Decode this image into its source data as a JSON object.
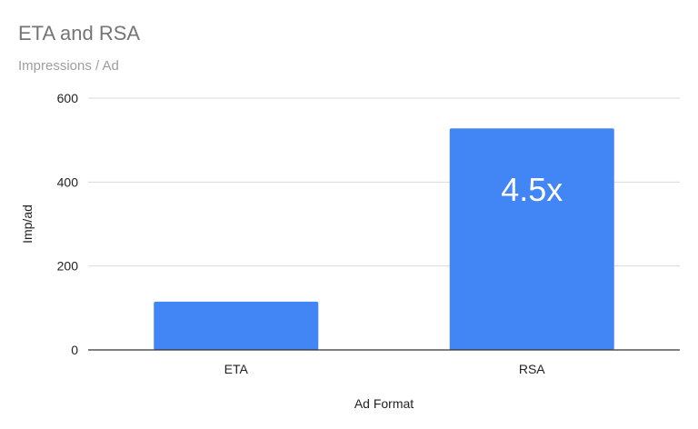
{
  "chart_data": {
    "type": "bar",
    "title": "ETA and RSA",
    "subtitle": "Impressions / Ad",
    "xlabel": "Ad Format",
    "ylabel": "Imp/ad",
    "categories": [
      "ETA",
      "RSA"
    ],
    "values": [
      115,
      528
    ],
    "ylim": [
      0,
      600
    ],
    "yticks": [
      0,
      200,
      400,
      600
    ],
    "grid": true,
    "legend": "none",
    "bar_color": "#4285f4",
    "annotations": [
      {
        "category": "RSA",
        "text": "4.5x"
      }
    ]
  }
}
